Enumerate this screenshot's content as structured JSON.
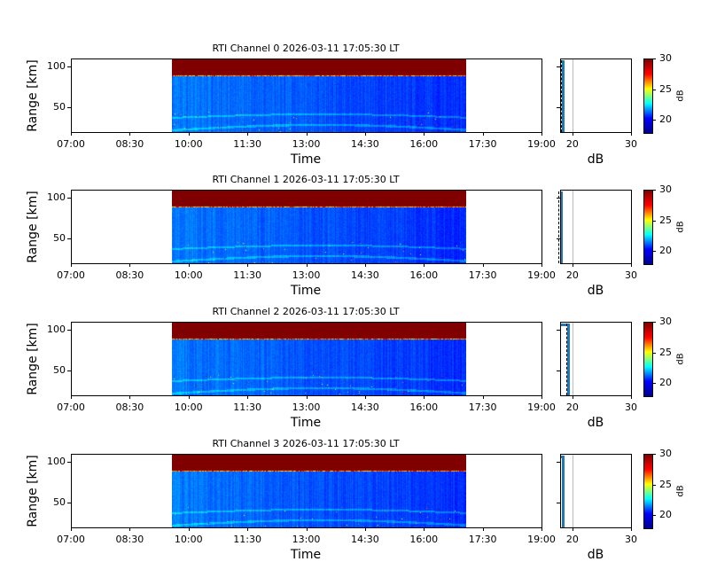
{
  "chart_data": {
    "type": "heatmap",
    "panels": [
      {
        "title": "RTI Channel 0 2026-03-11 17:05:30 LT",
        "profile_db": 18.5
      },
      {
        "title": "RTI Channel 1 2026-03-11 17:05:30 LT",
        "profile_db": 18.1
      },
      {
        "title": "RTI Channel 2 2026-03-11 17:05:30 LT",
        "profile_db": 19.4
      },
      {
        "title": "RTI Channel 3 2026-03-11 17:05:30 LT",
        "profile_db": 18.4
      }
    ],
    "xlabel": "Time",
    "ylabel": "Range [km]",
    "xticks": [
      "07:00",
      "08:30",
      "10:00",
      "11:30",
      "13:00",
      "14:30",
      "16:00",
      "17:30",
      "19:00"
    ],
    "xlim": [
      "07:00",
      "19:00"
    ],
    "data_time_span": [
      "09:35",
      "17:05"
    ],
    "ylim": [
      20,
      110
    ],
    "yticks": [
      "50",
      "100"
    ],
    "saturated_band_km": [
      90,
      110
    ],
    "profile_xlabel": "dB",
    "profile_xticks": [
      "20",
      "30"
    ],
    "profile_xlim": [
      17.9,
      30
    ],
    "colorbar_label": "dB",
    "colorbar_ticks": [
      "20",
      "25",
      "30"
    ],
    "colorbar_range": [
      18,
      30
    ],
    "colormap": "jet"
  }
}
